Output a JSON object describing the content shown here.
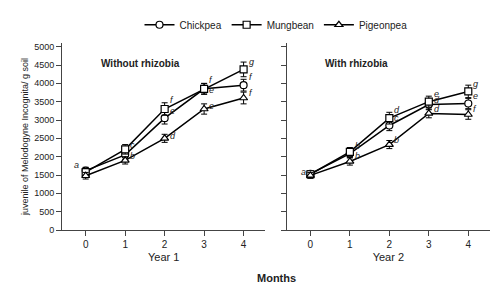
{
  "chart_data": [
    {
      "type": "line",
      "title": "Without rhizobia",
      "xlabel": "Year 1",
      "ylabel": "juvenile of Melodogyne Incognita/ g soil",
      "x": [
        0,
        1,
        2,
        3,
        4
      ],
      "xlim": [
        -0.6,
        4.55
      ],
      "xticks": [
        0,
        1,
        2,
        3,
        4
      ],
      "ylim": [
        0,
        5100
      ],
      "yticks": [
        0,
        500,
        1000,
        1500,
        2000,
        2500,
        3000,
        3500,
        4000,
        4500,
        5000
      ],
      "grid": false,
      "series": [
        {
          "name": "Chickpea",
          "color": "black",
          "marker": "circle",
          "values": [
            1620,
            2050,
            3050,
            3850,
            3950
          ],
          "errors": [
            90,
            120,
            160,
            140,
            160
          ]
        },
        {
          "name": "Mungbean",
          "color": "black",
          "marker": "square",
          "values": [
            1580,
            2200,
            3300,
            3850,
            4380
          ],
          "errors": [
            100,
            130,
            170,
            150,
            200
          ]
        },
        {
          "name": "Pigeonpea",
          "color": "black",
          "marker": "triangle",
          "values": [
            1480,
            1900,
            2500,
            3300,
            3600
          ],
          "errors": [
            90,
            100,
            110,
            140,
            160
          ]
        }
      ],
      "annotations": [
        {
          "text": "a",
          "x": -0.35,
          "y": 1580
        },
        {
          "text": "c",
          "x": 1.08,
          "y": 2130
        },
        {
          "text": "b",
          "x": 1.08,
          "y": 1820
        },
        {
          "text": "f",
          "x": 2.08,
          "y": 3350
        },
        {
          "text": "e",
          "x": 2.08,
          "y": 3050
        },
        {
          "text": "d",
          "x": 2.08,
          "y": 2380
        },
        {
          "text": "f",
          "x": 3.08,
          "y": 3900
        },
        {
          "text": "e",
          "x": 3.08,
          "y": 3620
        },
        {
          "text": "e",
          "x": 3.08,
          "y": 3200
        },
        {
          "text": "g",
          "x": 4.08,
          "y": 4400
        },
        {
          "text": "f",
          "x": 4.08,
          "y": 3970
        },
        {
          "text": "f",
          "x": 4.08,
          "y": 3550
        }
      ]
    },
    {
      "type": "line",
      "title": "With rhizobia",
      "xlabel": "Year 2",
      "x": [
        0,
        1,
        2,
        3,
        4
      ],
      "xlim": [
        -0.6,
        4.55
      ],
      "xticks": [
        0,
        1,
        2,
        3,
        4
      ],
      "ylim": [
        0,
        5100
      ],
      "yticks": [
        0,
        500,
        1000,
        1500,
        2000,
        2500,
        3000,
        3500,
        4000,
        4500,
        5000
      ],
      "grid": false,
      "tick_labels": "x",
      "series": [
        {
          "name": "Chickpea",
          "color": "black",
          "marker": "circle",
          "values": [
            1530,
            2080,
            2850,
            3420,
            3450
          ],
          "errors": [
            90,
            110,
            140,
            140,
            140
          ]
        },
        {
          "name": "Mungbean",
          "color": "black",
          "marker": "square",
          "values": [
            1520,
            2130,
            3050,
            3500,
            3780
          ],
          "errors": [
            100,
            120,
            160,
            150,
            170
          ]
        },
        {
          "name": "Pigeonpea",
          "color": "black",
          "marker": "triangle",
          "values": [
            1490,
            1870,
            2330,
            3180,
            3150
          ],
          "errors": [
            80,
            100,
            110,
            120,
            130
          ]
        }
      ],
      "annotations": [
        {
          "text": "a",
          "x": -0.3,
          "y": 1400
        },
        {
          "text": "b",
          "x": 1.08,
          "y": 2100
        },
        {
          "text": "b",
          "x": 1.08,
          "y": 1830
        },
        {
          "text": "d",
          "x": 2.08,
          "y": 3080
        },
        {
          "text": "c",
          "x": 2.08,
          "y": 2860
        },
        {
          "text": "b",
          "x": 2.08,
          "y": 2260
        },
        {
          "text": "e",
          "x": 3.08,
          "y": 3530
        },
        {
          "text": "d",
          "x": 3.08,
          "y": 3350
        },
        {
          "text": "d",
          "x": 3.08,
          "y": 3120
        },
        {
          "text": "g",
          "x": 4.08,
          "y": 3800
        },
        {
          "text": "e",
          "x": 4.08,
          "y": 3470
        },
        {
          "text": "f",
          "x": 4.08,
          "y": 3100
        }
      ]
    }
  ],
  "xlabel": "Months",
  "legend": "top"
}
